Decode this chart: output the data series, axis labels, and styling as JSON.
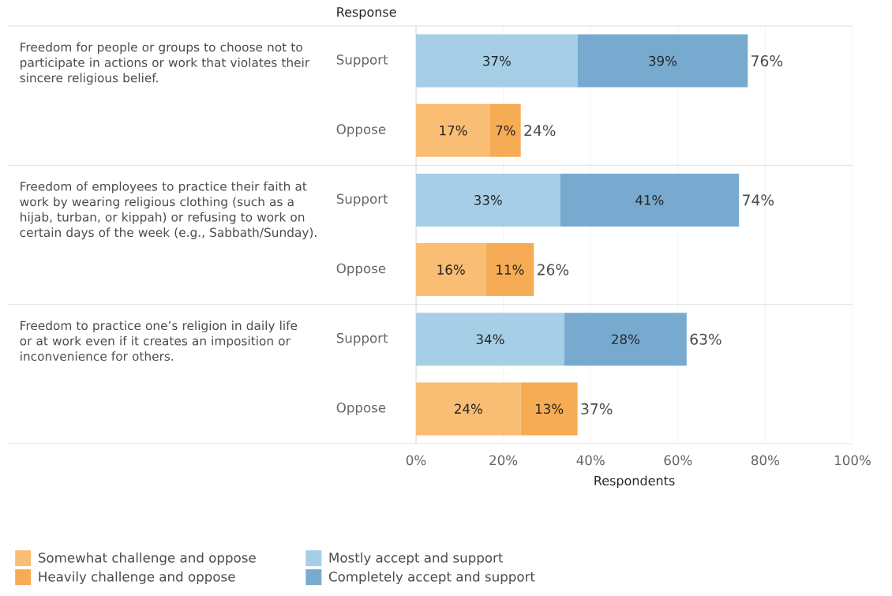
{
  "chart_data": {
    "type": "bar",
    "orientation": "horizontal",
    "stacked": true,
    "ylabel": "Response",
    "xlabel": "Respondents",
    "categories": [
      "Support",
      "Oppose",
      "Support",
      "Oppose",
      "Support",
      "Oppose"
    ],
    "series": [
      {
        "name": "Somewhat challenge and oppose",
        "color": "#fabd74",
        "values": [
          null,
          17,
          null,
          16,
          null,
          24
        ],
        "value_labels": [
          null,
          "17%",
          null,
          "16%",
          null,
          "24%"
        ]
      },
      {
        "name": "Heavily challenge and oppose",
        "color": "#f6ac54",
        "values": [
          null,
          7,
          null,
          11,
          null,
          13
        ],
        "value_labels": [
          null,
          "7%",
          null,
          "11%",
          null,
          "13%"
        ]
      },
      {
        "name": "Mostly accept and support",
        "color": "#a6cee6",
        "values": [
          37,
          null,
          33,
          null,
          34,
          null
        ],
        "value_labels": [
          "37%",
          null,
          "33%",
          null,
          "34%",
          null
        ]
      },
      {
        "name": "Completely accept and support",
        "color": "#78aad0",
        "values": [
          39,
          null,
          41,
          null,
          28,
          null
        ],
        "value_labels": [
          "39%",
          null,
          "41%",
          null,
          "28%",
          null
        ]
      }
    ],
    "totals": [
      "76%",
      "24%",
      "74%",
      "26%",
      "63%",
      "37%"
    ],
    "xlim": [
      0,
      100
    ],
    "xticks": [
      {
        "value": 0,
        "label": "0%"
      },
      {
        "value": 20,
        "label": "20%"
      },
      {
        "value": 40,
        "label": "40%"
      },
      {
        "value": 60,
        "label": "60%"
      },
      {
        "value": 80,
        "label": "80%"
      },
      {
        "value": 100,
        "label": "100%"
      }
    ],
    "grid": "x",
    "legend": "bottom",
    "annotations": [
      "Freedom for people or groups to choose not to participate in actions or work that violates their sincere religious belief.",
      "Freedom of employees to practice their faith at work by wearing religious clothing (such as a hijab, turban, or kippah) or refusing to work on certain days of the week (e.g., Sabbath/Sunday).",
      "Freedom to practice one’s religion in daily life or at work even if it creates an imposition or inconvenience for others."
    ]
  }
}
